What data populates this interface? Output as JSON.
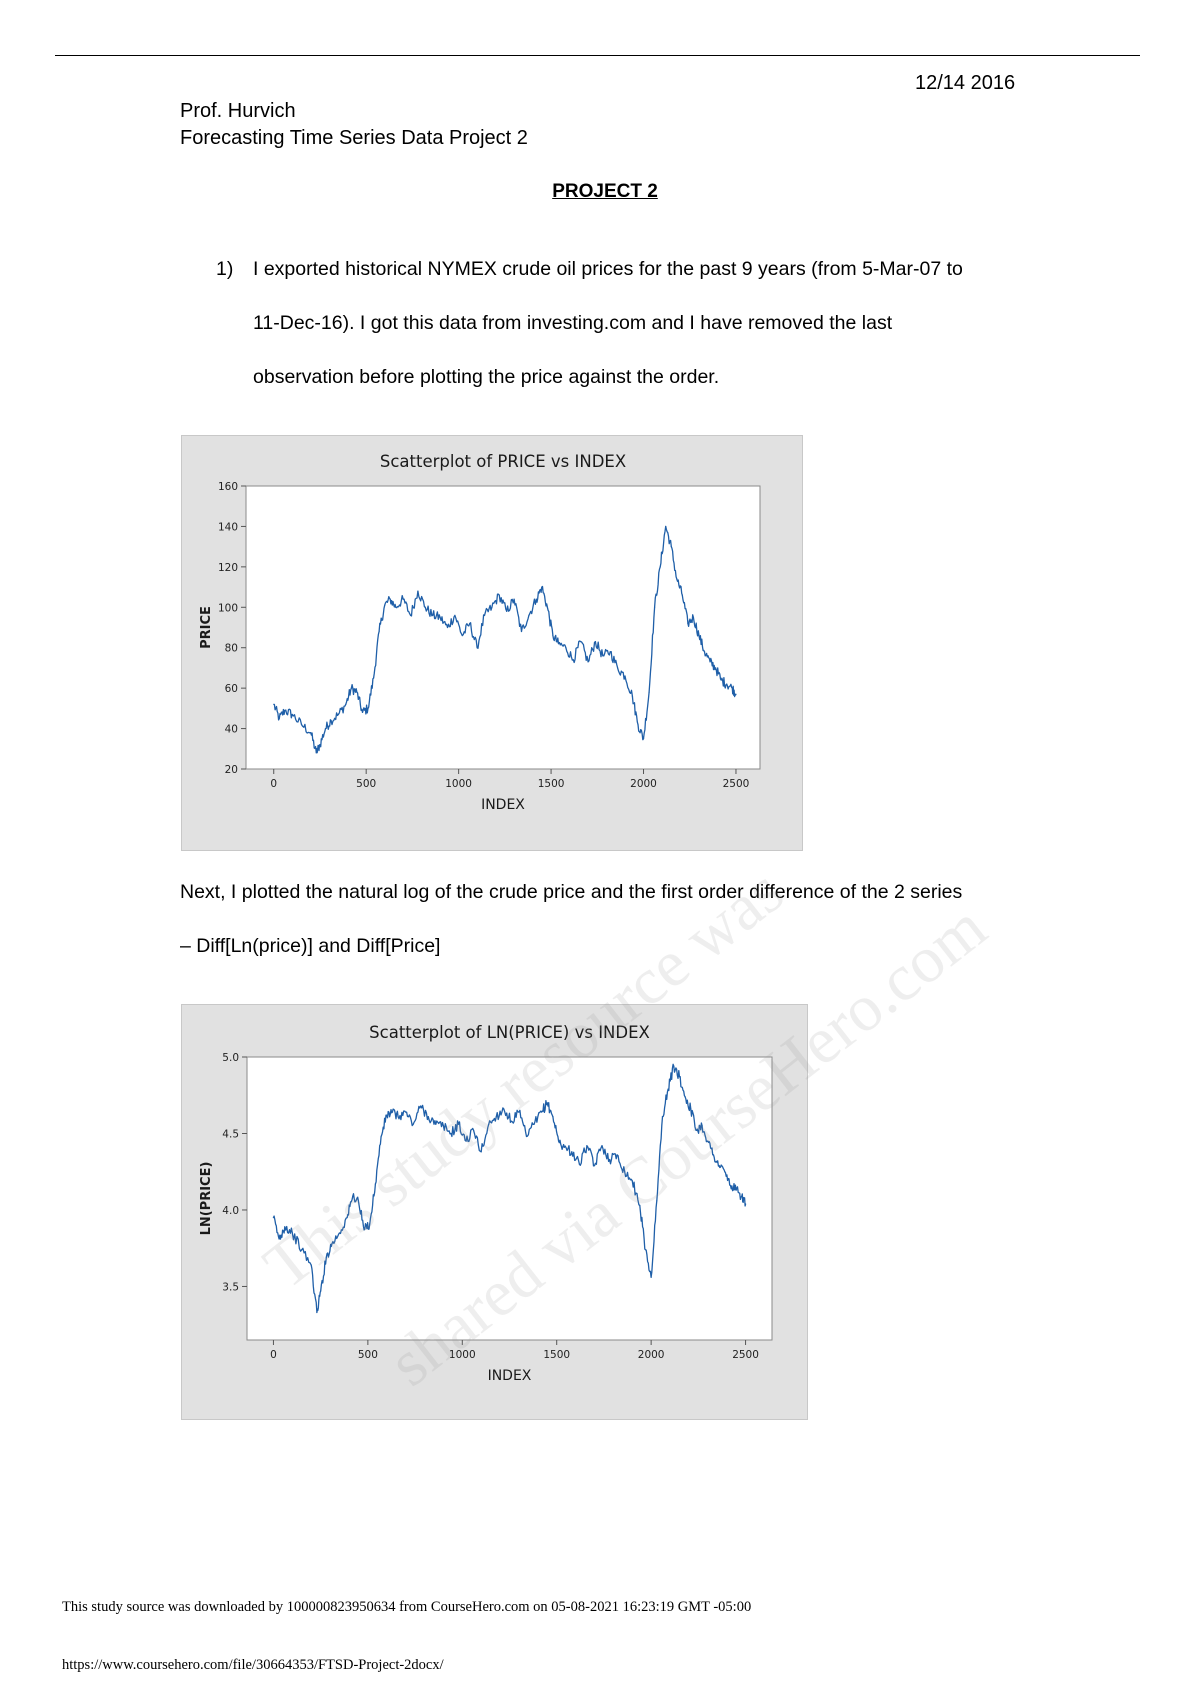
{
  "header": {
    "date": "12/14 2016",
    "professor": "Prof. Hurvich",
    "course": "Forecasting Time Series Data Project 2",
    "project_title": "PROJECT 2"
  },
  "item1": {
    "number": "1)",
    "lines": [
      "I exported historical NYMEX crude oil prices for the past 9 years (from 5-Mar-07 to",
      "11-Dec-16). I got this data from investing.com and I have removed the last",
      "observation before plotting the price against the order."
    ]
  },
  "para2": {
    "lines": [
      "Next, I plotted the natural log of the crude price and the first order difference of the 2 series",
      "– Diff[Ln(price)] and Diff[Price]"
    ]
  },
  "watermark": {
    "line1": "This study resource was",
    "line2": "shared via CourseHero.com"
  },
  "footer": {
    "source": "This study source was downloaded by 100000823950634 from CourseHero.com on 05-08-2021 16:23:19 GMT -05:00",
    "url": "https://www.coursehero.com/file/30664353/FTSD-Project-2docx/"
  },
  "chart_data": [
    {
      "type": "line",
      "title": "Scatterplot of PRICE vs INDEX",
      "xlabel": "INDEX",
      "ylabel": "PRICE",
      "xlim": [
        -150,
        2630
      ],
      "ylim": [
        20,
        160
      ],
      "xticks": [
        0,
        500,
        1000,
        1500,
        2000,
        2500
      ],
      "yticks": [
        20,
        40,
        60,
        80,
        100,
        120,
        140,
        160
      ],
      "line_color": "#1f5fa8",
      "x": [
        0,
        30,
        60,
        100,
        150,
        200,
        230,
        250,
        280,
        310,
        350,
        390,
        420,
        450,
        480,
        510,
        540,
        570,
        600,
        630,
        660,
        700,
        740,
        780,
        820,
        860,
        900,
        940,
        980,
        1020,
        1060,
        1100,
        1140,
        1180,
        1220,
        1260,
        1300,
        1340,
        1380,
        1420,
        1450,
        1480,
        1510,
        1540,
        1580,
        1620,
        1660,
        1700,
        1740,
        1780,
        1820,
        1860,
        1900,
        1940,
        1970,
        2000,
        2030,
        2060,
        2090,
        2120,
        2150,
        2180,
        2210,
        2240,
        2270,
        2300,
        2330,
        2360,
        2390,
        2420,
        2450,
        2480,
        2500
      ],
      "y": [
        52,
        45,
        49,
        47,
        42,
        38,
        28,
        32,
        40,
        44,
        47,
        52,
        60,
        58,
        48,
        50,
        65,
        88,
        101,
        104,
        100,
        104,
        96,
        108,
        100,
        96,
        95,
        90,
        96,
        86,
        92,
        80,
        96,
        100,
        106,
        98,
        104,
        88,
        96,
        104,
        110,
        100,
        86,
        82,
        80,
        74,
        83,
        73,
        83,
        76,
        78,
        70,
        66,
        56,
        42,
        35,
        58,
        100,
        120,
        140,
        130,
        114,
        106,
        92,
        95,
        86,
        78,
        73,
        70,
        64,
        62,
        60,
        57
      ]
    },
    {
      "type": "line",
      "title": "Scatterplot of LN(PRICE) vs INDEX",
      "xlabel": "INDEX",
      "ylabel": "LN(PRICE)",
      "xlim": [
        -140,
        2640
      ],
      "ylim": [
        3.15,
        5.0
      ],
      "xticks": [
        0,
        500,
        1000,
        1500,
        2000,
        2500
      ],
      "yticks": [
        3.5,
        4.0,
        4.5,
        5.0
      ],
      "line_color": "#1f5fa8",
      "x": [
        0,
        30,
        60,
        100,
        150,
        200,
        230,
        250,
        280,
        310,
        350,
        390,
        420,
        450,
        480,
        510,
        540,
        570,
        600,
        630,
        660,
        700,
        740,
        780,
        820,
        860,
        900,
        940,
        980,
        1020,
        1060,
        1100,
        1140,
        1180,
        1220,
        1260,
        1300,
        1340,
        1380,
        1420,
        1450,
        1480,
        1510,
        1540,
        1580,
        1620,
        1660,
        1700,
        1740,
        1780,
        1820,
        1860,
        1900,
        1940,
        1970,
        2000,
        2030,
        2060,
        2090,
        2120,
        2150,
        2180,
        2210,
        2240,
        2270,
        2300,
        2330,
        2360,
        2390,
        2420,
        2450,
        2480,
        2500
      ],
      "y": [
        3.95,
        3.81,
        3.89,
        3.85,
        3.74,
        3.64,
        3.33,
        3.47,
        3.69,
        3.78,
        3.85,
        3.95,
        4.09,
        4.06,
        3.87,
        3.91,
        4.17,
        4.48,
        4.62,
        4.64,
        4.61,
        4.64,
        4.56,
        4.68,
        4.61,
        4.56,
        4.55,
        4.5,
        4.56,
        4.45,
        4.52,
        4.38,
        4.56,
        4.61,
        4.66,
        4.58,
        4.64,
        4.48,
        4.56,
        4.64,
        4.7,
        4.61,
        4.45,
        4.41,
        4.38,
        4.3,
        4.42,
        4.29,
        4.42,
        4.33,
        4.36,
        4.25,
        4.19,
        4.03,
        3.74,
        3.56,
        4.06,
        4.61,
        4.79,
        4.94,
        4.87,
        4.74,
        4.66,
        4.52,
        4.55,
        4.45,
        4.36,
        4.29,
        4.25,
        4.16,
        4.13,
        4.09,
        4.04
      ]
    }
  ]
}
